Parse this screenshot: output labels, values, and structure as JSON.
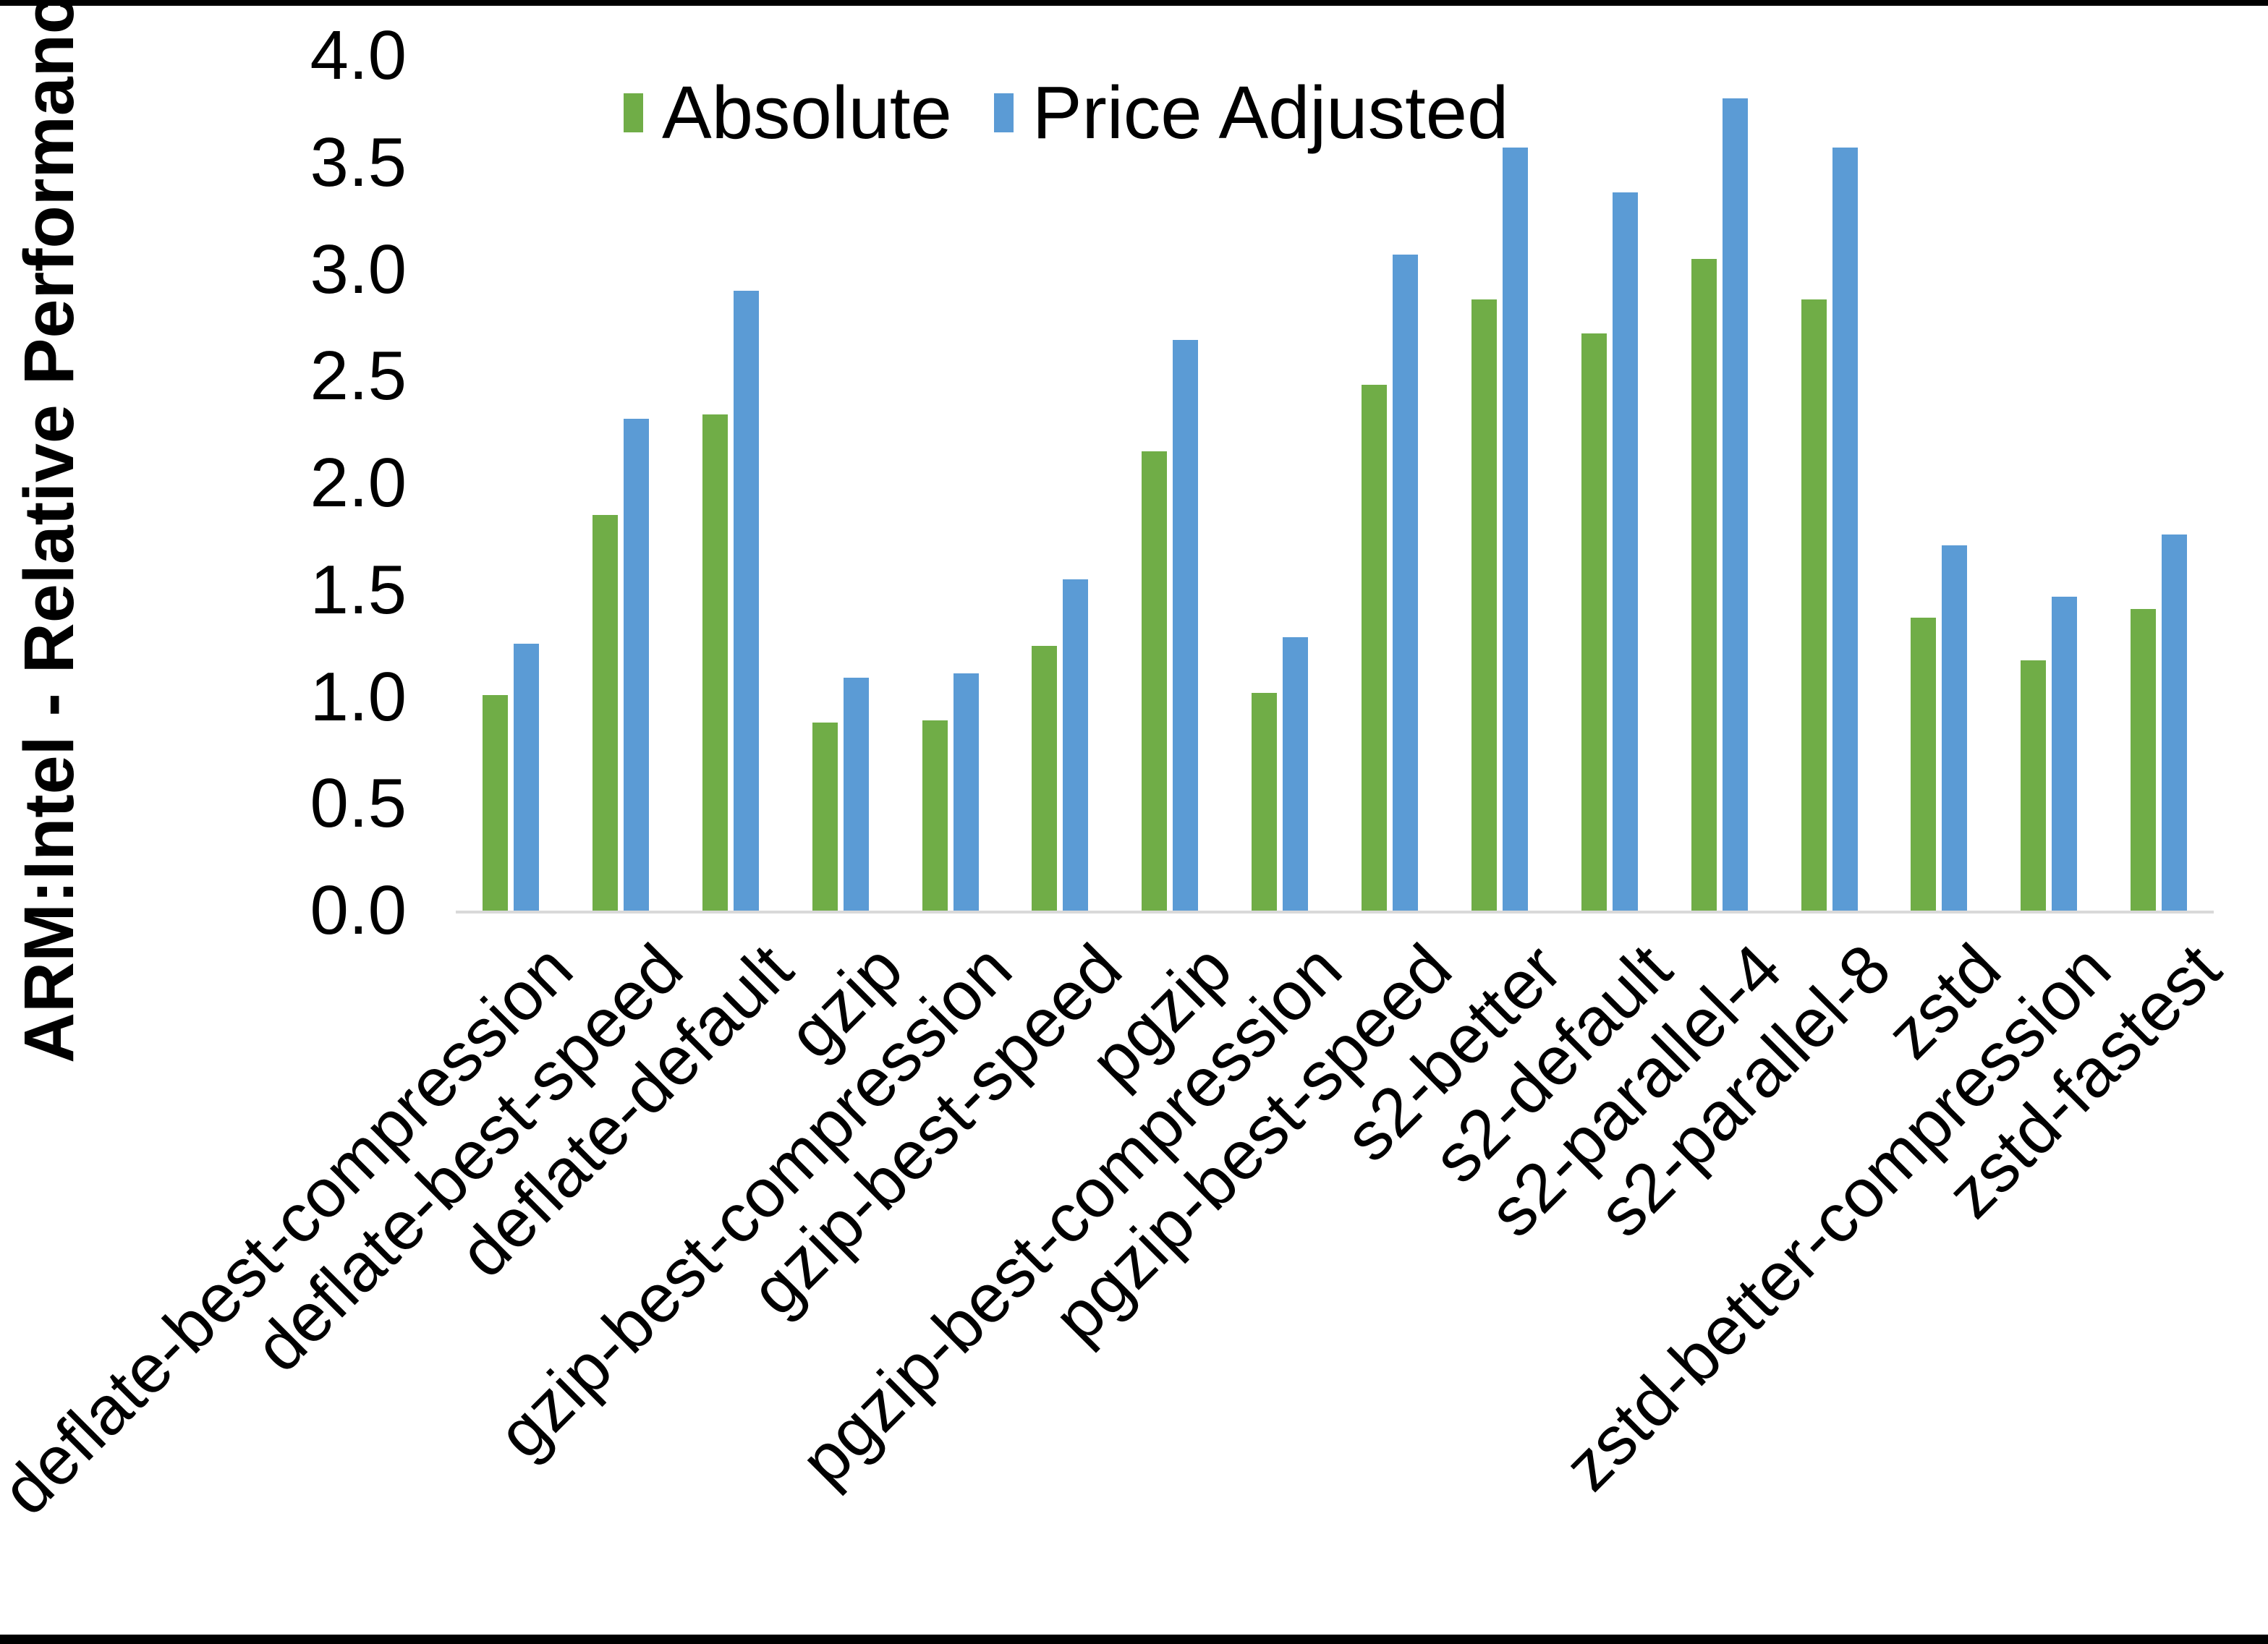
{
  "chart_data": {
    "type": "bar",
    "title": "",
    "xlabel": "",
    "ylabel": "ARM:Intel - Relative Performance",
    "ylim": [
      0.0,
      4.0
    ],
    "ytick_step": 0.5,
    "ytick_labels": [
      "4.0",
      "3.5",
      "3.0",
      "2.5",
      "2.0",
      "1.5",
      "1.0",
      "0.5",
      "0.0"
    ],
    "grid": false,
    "legend_position": "top-center",
    "categories": [
      "deflate-best-compression",
      "deflate-best-speed",
      "deflate-default",
      "gzip",
      "gzip-best-compression",
      "gzip-best-speed",
      "pgzip",
      "pgzip-best-compression",
      "pgzip-best-speed",
      "s2-better",
      "s2-default",
      "s2-parallel-4",
      "s2-parallel-8",
      "zstd",
      "zstd-better-compression",
      "zstd-fastest"
    ],
    "series": [
      {
        "name": "Absolute",
        "color": "#70AD47",
        "values": [
          1.01,
          1.85,
          2.32,
          0.88,
          0.89,
          1.24,
          2.15,
          1.02,
          2.46,
          2.86,
          2.7,
          3.05,
          2.86,
          1.37,
          1.17,
          1.41
        ]
      },
      {
        "name": "Price Adjusted",
        "color": "#5B9BD5",
        "values": [
          1.25,
          2.3,
          2.9,
          1.09,
          1.11,
          1.55,
          2.67,
          1.28,
          3.07,
          3.57,
          3.36,
          3.8,
          3.57,
          1.71,
          1.47,
          1.76
        ]
      }
    ]
  },
  "colors": {
    "background": "#FFFFFF",
    "axis_line": "#D9D9D9",
    "text": "#000000",
    "frame_border": "#000000"
  }
}
